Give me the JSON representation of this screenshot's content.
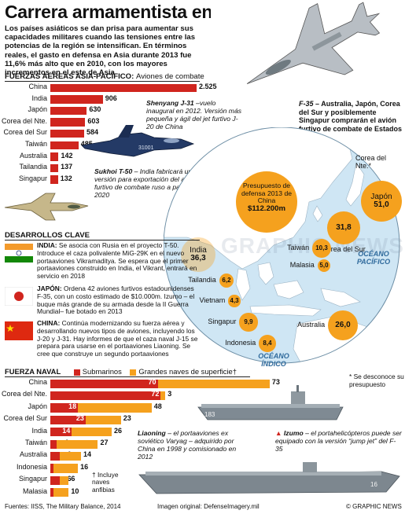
{
  "title": "Carrera armamentista en Asia",
  "intro": "Los países asiáticos se dan prisa para aumentar sus capacidades militares cuando las tensiones entre las potencias de la región se intensifican. En términos reales, el gasto en defensa en Asia durante 2013 fue 11,6% más alto que en 2010, con los mayores incrementos en el este de Asia",
  "air": {
    "heading": "FUERZAS AÉREAS ASIA-PACÍFICO:",
    "subheading": "Aviones de combate"
  },
  "notes": {
    "shenyang_name": "Shenyang J-31",
    "shenyang_text": " –vuelo inaugural en 2012. Versión más pequeña y ágil del jet furtivo J-20 de China",
    "sukhoi_name": "Sukhoi T-50",
    "sukhoi_text": " – India fabricará una versión para exportación del avión furtivo de combate ruso a partir de 2020",
    "f35_name": "F-35",
    "f35_text": " – Australia, Japón, Corea del Sur y posiblemente Singapur comprarán el avión furtivo de combate de Estados Unidos",
    "jet_tail": "31001"
  },
  "map": {
    "budget_label": "Presupuesto de defensa 2013 de China",
    "budget_value": "$112.200m",
    "ocean_pacific": "OCÉANO PACÍFICO",
    "ocean_indian": "OCÉANO ÍNDICO",
    "nk_label": "Corea del Nte.*",
    "footnote": "* Se desconoce su presupuesto",
    "watermark": "GRAPHIC NEWS",
    "bubbles": [
      {
        "country": "Japón",
        "value": "51,0"
      },
      {
        "country": "Corea del Sur",
        "value": "31,8"
      },
      {
        "country": "India",
        "value": "36,3"
      },
      {
        "country": "Taiwán",
        "value": "10,3"
      },
      {
        "country": "Malasia",
        "value": "5,0"
      },
      {
        "country": "Tailandia",
        "value": "6,2"
      },
      {
        "country": "Vietnam",
        "value": "4,3"
      },
      {
        "country": "Singapur",
        "value": "9,9"
      },
      {
        "country": "Indonesia",
        "value": "8,4"
      },
      {
        "country": "Australia",
        "value": "26,0"
      }
    ]
  },
  "dev": {
    "heading": "DESARROLLOS CLAVE",
    "india_title": "INDIA:",
    "india_text": " Se asocia con Rusia en el proyecto T-50. Introduce el caza polivalente MiG-29K en el nuevo portaaviones Vikramaditya. Se espera que el primer portaaviones construido en India, el Vikrant, entrará en servicio en 2018",
    "japan_title": "JAPÓN:",
    "japan_text": " Ordena 42 aviones furtivos estadounidenses F-35, con un costo estimado de $10.000m. Izumo – el buque más grande de su armada desde la II Guerra Mundial– fue botado en 2013",
    "china_title": "CHINA:",
    "china_text": " Continúa modernizando su fuerza aérea y desarrollando nuevos tipos de aviones, incluyendo los J-20 y J-31. Hay informes de que el caza naval J-15 se prepara para usarse en el portaaviones Liaoning. Se cree que construye un segundo portaaviones"
  },
  "naval": {
    "heading": "FUERZA NAVAL",
    "legend_sub": "Submarinos",
    "legend_ship": "Grandes naves de superficie†",
    "footnote": "† Incluye naves anfibias",
    "liaoning_name": "Liaoning",
    "liaoning_text": " – el portaaviones ex soviético Varyag – adquirido por China en 1998 y comisionado en 2012",
    "izumo_name": "Izumo",
    "izumo_text": " – el portahelicópteros puede ser equipado con la versión “jump jet” del F-35",
    "hull_left": "16",
    "hull_right": "183"
  },
  "footer": {
    "sources": "Fuentes: IISS, The Military Balance, 2014",
    "image": "Imagen original: DefenseImagery.mil",
    "credit": "© GRAPHIC NEWS"
  },
  "colors": {
    "red": "#d0251e",
    "orange": "#f5a11e",
    "sea": "#cfe6f4",
    "land": "#ffffff"
  },
  "chart_data": [
    {
      "type": "bar",
      "orientation": "horizontal",
      "title": "FUERZAS AÉREAS ASIA-PACÍFICO: Aviones de combate",
      "categories": [
        "China",
        "India",
        "Japón",
        "Corea del Nte.",
        "Corea del Sur",
        "Taiwán",
        "Australia",
        "Tailandia",
        "Singapur"
      ],
      "values": [
        2525,
        906,
        630,
        603,
        584,
        485,
        142,
        137,
        132
      ],
      "value_labels": [
        "2.525",
        "906",
        "630",
        "603",
        "584",
        "485",
        "142",
        "137",
        "132"
      ],
      "color": "#d0251e"
    },
    {
      "type": "bar",
      "orientation": "horizontal",
      "stacked": true,
      "title": "FUERZA NAVAL",
      "categories": [
        "China",
        "Corea del Nte.",
        "Japón",
        "Corea del Sur",
        "India",
        "Taiwán",
        "Australia",
        "Indonesia",
        "Singapur",
        "Malasia"
      ],
      "series": [
        {
          "name": "Submarinos",
          "color": "#d0251e",
          "values": [
            70,
            72,
            18,
            23,
            14,
            4,
            6,
            2,
            6,
            2
          ]
        },
        {
          "name": "Grandes naves de superficie†",
          "color": "#f5a11e",
          "values": [
            73,
            3,
            48,
            23,
            26,
            27,
            14,
            16,
            6,
            10
          ]
        }
      ]
    }
  ]
}
